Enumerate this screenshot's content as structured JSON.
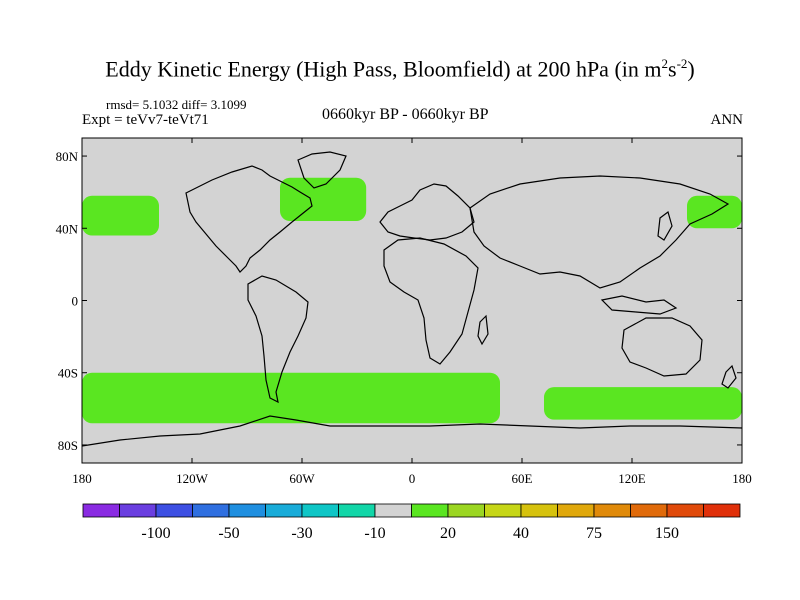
{
  "header": {
    "title_main": "Eddy Kinetic Energy (High Pass, Bloomfield) at 200 hPa (in m",
    "title_sup1": "2",
    "title_mid": "s",
    "title_sup2": "-2",
    "title_end": ")",
    "stats": "rmsd= 5.1032 diff= 3.1099",
    "expt": "Expt = teVv7-teVt71",
    "period": "0660kyr BP - 0660kyr BP",
    "season": "ANN"
  },
  "map": {
    "background_color": "#d3d3d3",
    "anomaly_color": "#5ae621",
    "lat_labels": [
      "80N",
      "40N",
      "0",
      "40S",
      "80S"
    ],
    "lat_values": [
      80,
      40,
      0,
      -40,
      -80
    ],
    "lon_labels": [
      "180",
      "120W",
      "60W",
      "0",
      "60E",
      "120E",
      "180"
    ],
    "lon_values": [
      -180,
      -120,
      -60,
      0,
      60,
      120,
      180
    ],
    "extent": {
      "lon": [
        -180,
        180
      ],
      "lat": [
        -90,
        90
      ]
    },
    "regions": [
      {
        "name": "north-pacific-east",
        "lon_min": -180,
        "lon_max": -138,
        "lat_min": 36,
        "lat_max": 58
      },
      {
        "name": "north-pacific-west",
        "lon_min": 150,
        "lon_max": 180,
        "lat_min": 40,
        "lat_max": 58
      },
      {
        "name": "north-atlantic",
        "lon_min": -72,
        "lon_max": -25,
        "lat_min": 44,
        "lat_max": 68
      },
      {
        "name": "southern-ocean-west",
        "lon_min": -180,
        "lon_max": 48,
        "lat_min": -68,
        "lat_max": -40
      },
      {
        "name": "southern-ocean-east",
        "lon_min": 72,
        "lon_max": 180,
        "lat_min": -66,
        "lat_max": -48
      }
    ]
  },
  "colorbar": {
    "colors": [
      "#8a2be2",
      "#6a3ee0",
      "#3d4fe3",
      "#2f6fe0",
      "#1f8fe0",
      "#19acd9",
      "#0fc6c6",
      "#12d6a8",
      "#d3d3d3",
      "#5ae621",
      "#9bd622",
      "#c6d617",
      "#d6c20e",
      "#e0a80c",
      "#e08a0a",
      "#e06a0a",
      "#e04a0a",
      "#e0300a"
    ],
    "labels": [
      "-100",
      "-50",
      "-30",
      "-10",
      "20",
      "40",
      "75",
      "150"
    ]
  }
}
